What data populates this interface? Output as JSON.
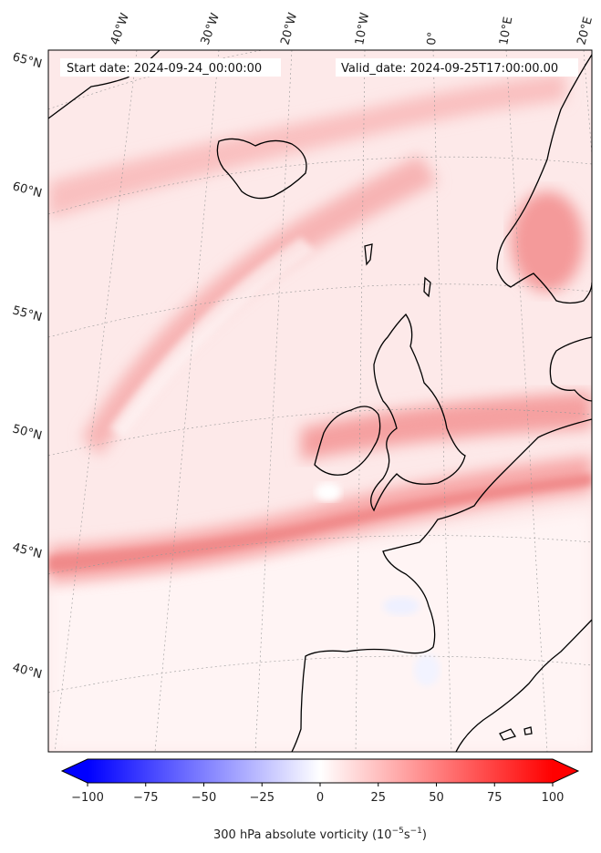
{
  "header": {
    "start_date": "Start date: 2024-09-24_00:00:00",
    "valid_date": "Valid_date: 2024-09-25T17:00:00.00"
  },
  "map": {
    "projection": "conic",
    "field": "300 hPa absolute vorticity",
    "longitude_labels": [
      "40°W",
      "30°W",
      "20°W",
      "10°W",
      "0°",
      "10°E",
      "20°E"
    ],
    "latitude_labels": [
      "65°N",
      "60°N",
      "55°N",
      "50°N",
      "45°N",
      "40°N"
    ],
    "gridlines": true,
    "coastline_color": "#000000"
  },
  "colorbar": {
    "title": "300 hPa absolute vorticity (10",
    "title_exp1": "−5",
    "title_mid": "s",
    "title_exp2": "−1",
    "title_end": ")",
    "min": -100,
    "max": 100,
    "tick_labels": [
      "−100",
      "−75",
      "−50",
      "−25",
      "0",
      "25",
      "50",
      "75",
      "100"
    ],
    "colormap": "bwr",
    "extend": "both",
    "low_color": "#0000ff",
    "mid_color": "#ffffff",
    "high_color": "#ff0000"
  }
}
